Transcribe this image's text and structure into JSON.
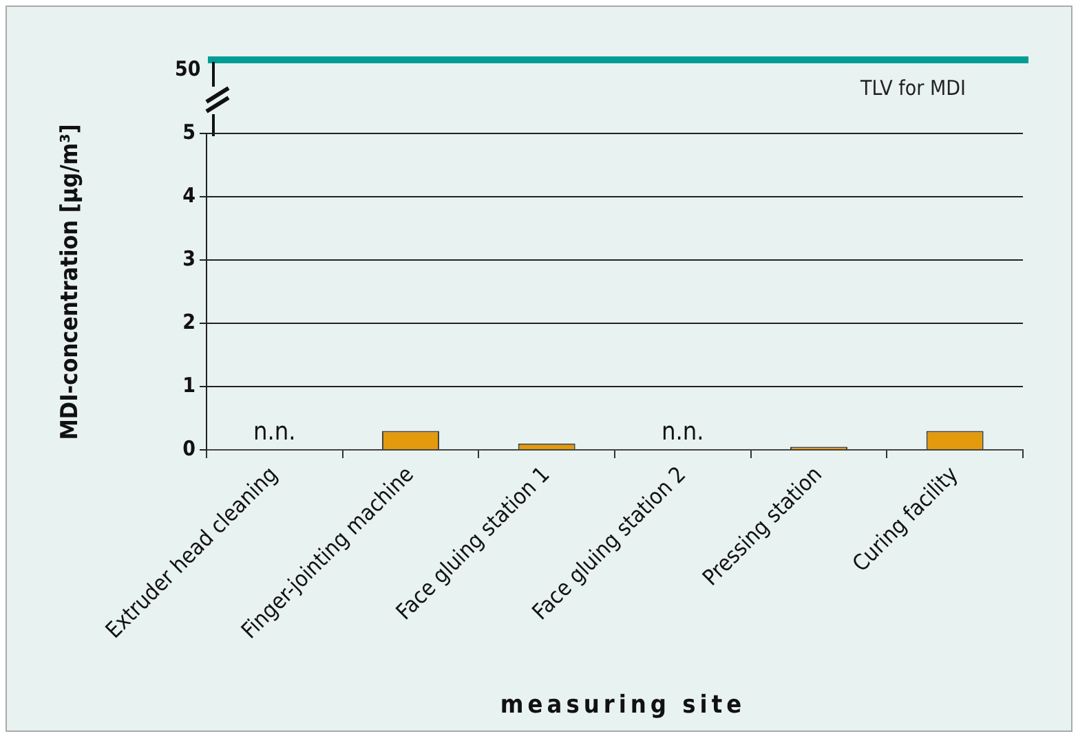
{
  "chart_data": {
    "type": "bar",
    "categories": [
      "Extruder head cleaning",
      "Finger-jointing machine",
      "Face gluing station 1",
      "Face gluing station 2",
      "Pressing station",
      "Curing facility"
    ],
    "values": [
      null,
      0.3,
      0.1,
      null,
      0.05,
      0.3
    ],
    "value_labels": [
      "n.n.",
      null,
      null,
      "n.n.",
      null,
      null
    ],
    "color": "#e39a0c",
    "ylim": [
      0,
      5
    ],
    "yticks": [
      0,
      1,
      2,
      3,
      4,
      5
    ],
    "grid": "y",
    "xlabel": "measuring site",
    "ylabel": "MDI-concentration [µg/m³]",
    "annotations": [
      "50",
      "TLV for MDI"
    ]
  }
}
